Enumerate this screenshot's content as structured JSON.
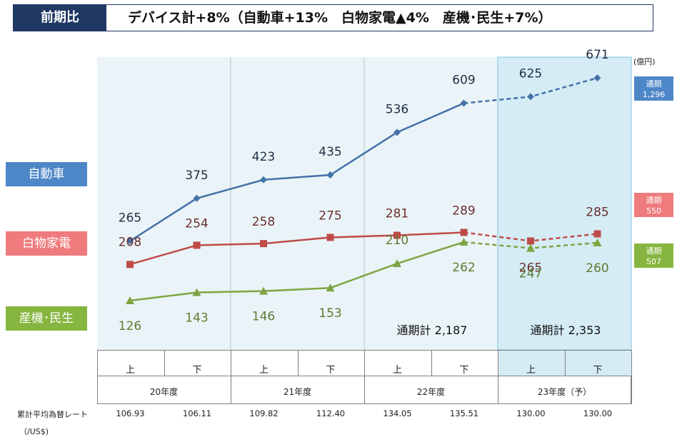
{
  "header": {
    "tag": "前期比",
    "text": "デバイス計+8%（自動車+13%　白物家電▲4%　産機･民生+7%）"
  },
  "unit": "(億円)",
  "segments": [
    {
      "label": "自動車",
      "color": "#4e87c8"
    },
    {
      "label": "白物家電",
      "color": "#ef7b7d"
    },
    {
      "label": "産機･民生",
      "color": "#86b63f"
    }
  ],
  "totals": [
    {
      "line1": "通期",
      "line2": "1,296",
      "color": "#4e87c8"
    },
    {
      "line1": "通期",
      "line2": "550",
      "color": "#ef7b7d"
    },
    {
      "line1": "通期",
      "line2": "507",
      "color": "#86b63f"
    }
  ],
  "annual_totals": [
    {
      "label": "通期計 2,187"
    },
    {
      "label": "通期計 2,353"
    }
  ],
  "periods": {
    "halves": [
      "上",
      "下",
      "上",
      "下",
      "上",
      "下",
      "上",
      "下"
    ],
    "years": [
      "20年度",
      "21年度",
      "22年度",
      "23年度（予）"
    ]
  },
  "fx": {
    "label": "累計平均為替レート",
    "unit": "（/US$)",
    "values": [
      "106.93",
      "106.11",
      "109.82",
      "112.40",
      "134.05",
      "135.51",
      "130.00",
      "130.00"
    ]
  },
  "chart_data": {
    "type": "line",
    "x": [
      "20年度 上",
      "20年度 下",
      "21年度 上",
      "21年度 下",
      "22年度 上",
      "22年度 下",
      "23年度（予） 上",
      "23年度（予） 下"
    ],
    "forecast_from_index": 5,
    "series": [
      {
        "name": "自動車",
        "color": "#4472a8",
        "marker": "diamond",
        "values": [
          265,
          375,
          423,
          435,
          536,
          609,
          625,
          671
        ]
      },
      {
        "name": "白物家電",
        "color": "#be4b48",
        "marker": "square",
        "values": [
          208,
          254,
          258,
          275,
          281,
          289,
          265,
          285
        ]
      },
      {
        "name": "産機･民生",
        "color": "#7fa443",
        "marker": "triangle",
        "values": [
          126,
          143,
          146,
          153,
          210,
          262,
          247,
          260
        ]
      }
    ],
    "labels": [
      [
        "265",
        "375",
        "423",
        "435",
        "536",
        "609",
        "625",
        "671"
      ],
      [
        "208",
        "254",
        "258",
        "275",
        "281",
        "289",
        "265",
        "285"
      ],
      [
        "126",
        "143",
        "146",
        "153",
        "210",
        "262",
        "247",
        "260"
      ]
    ]
  }
}
